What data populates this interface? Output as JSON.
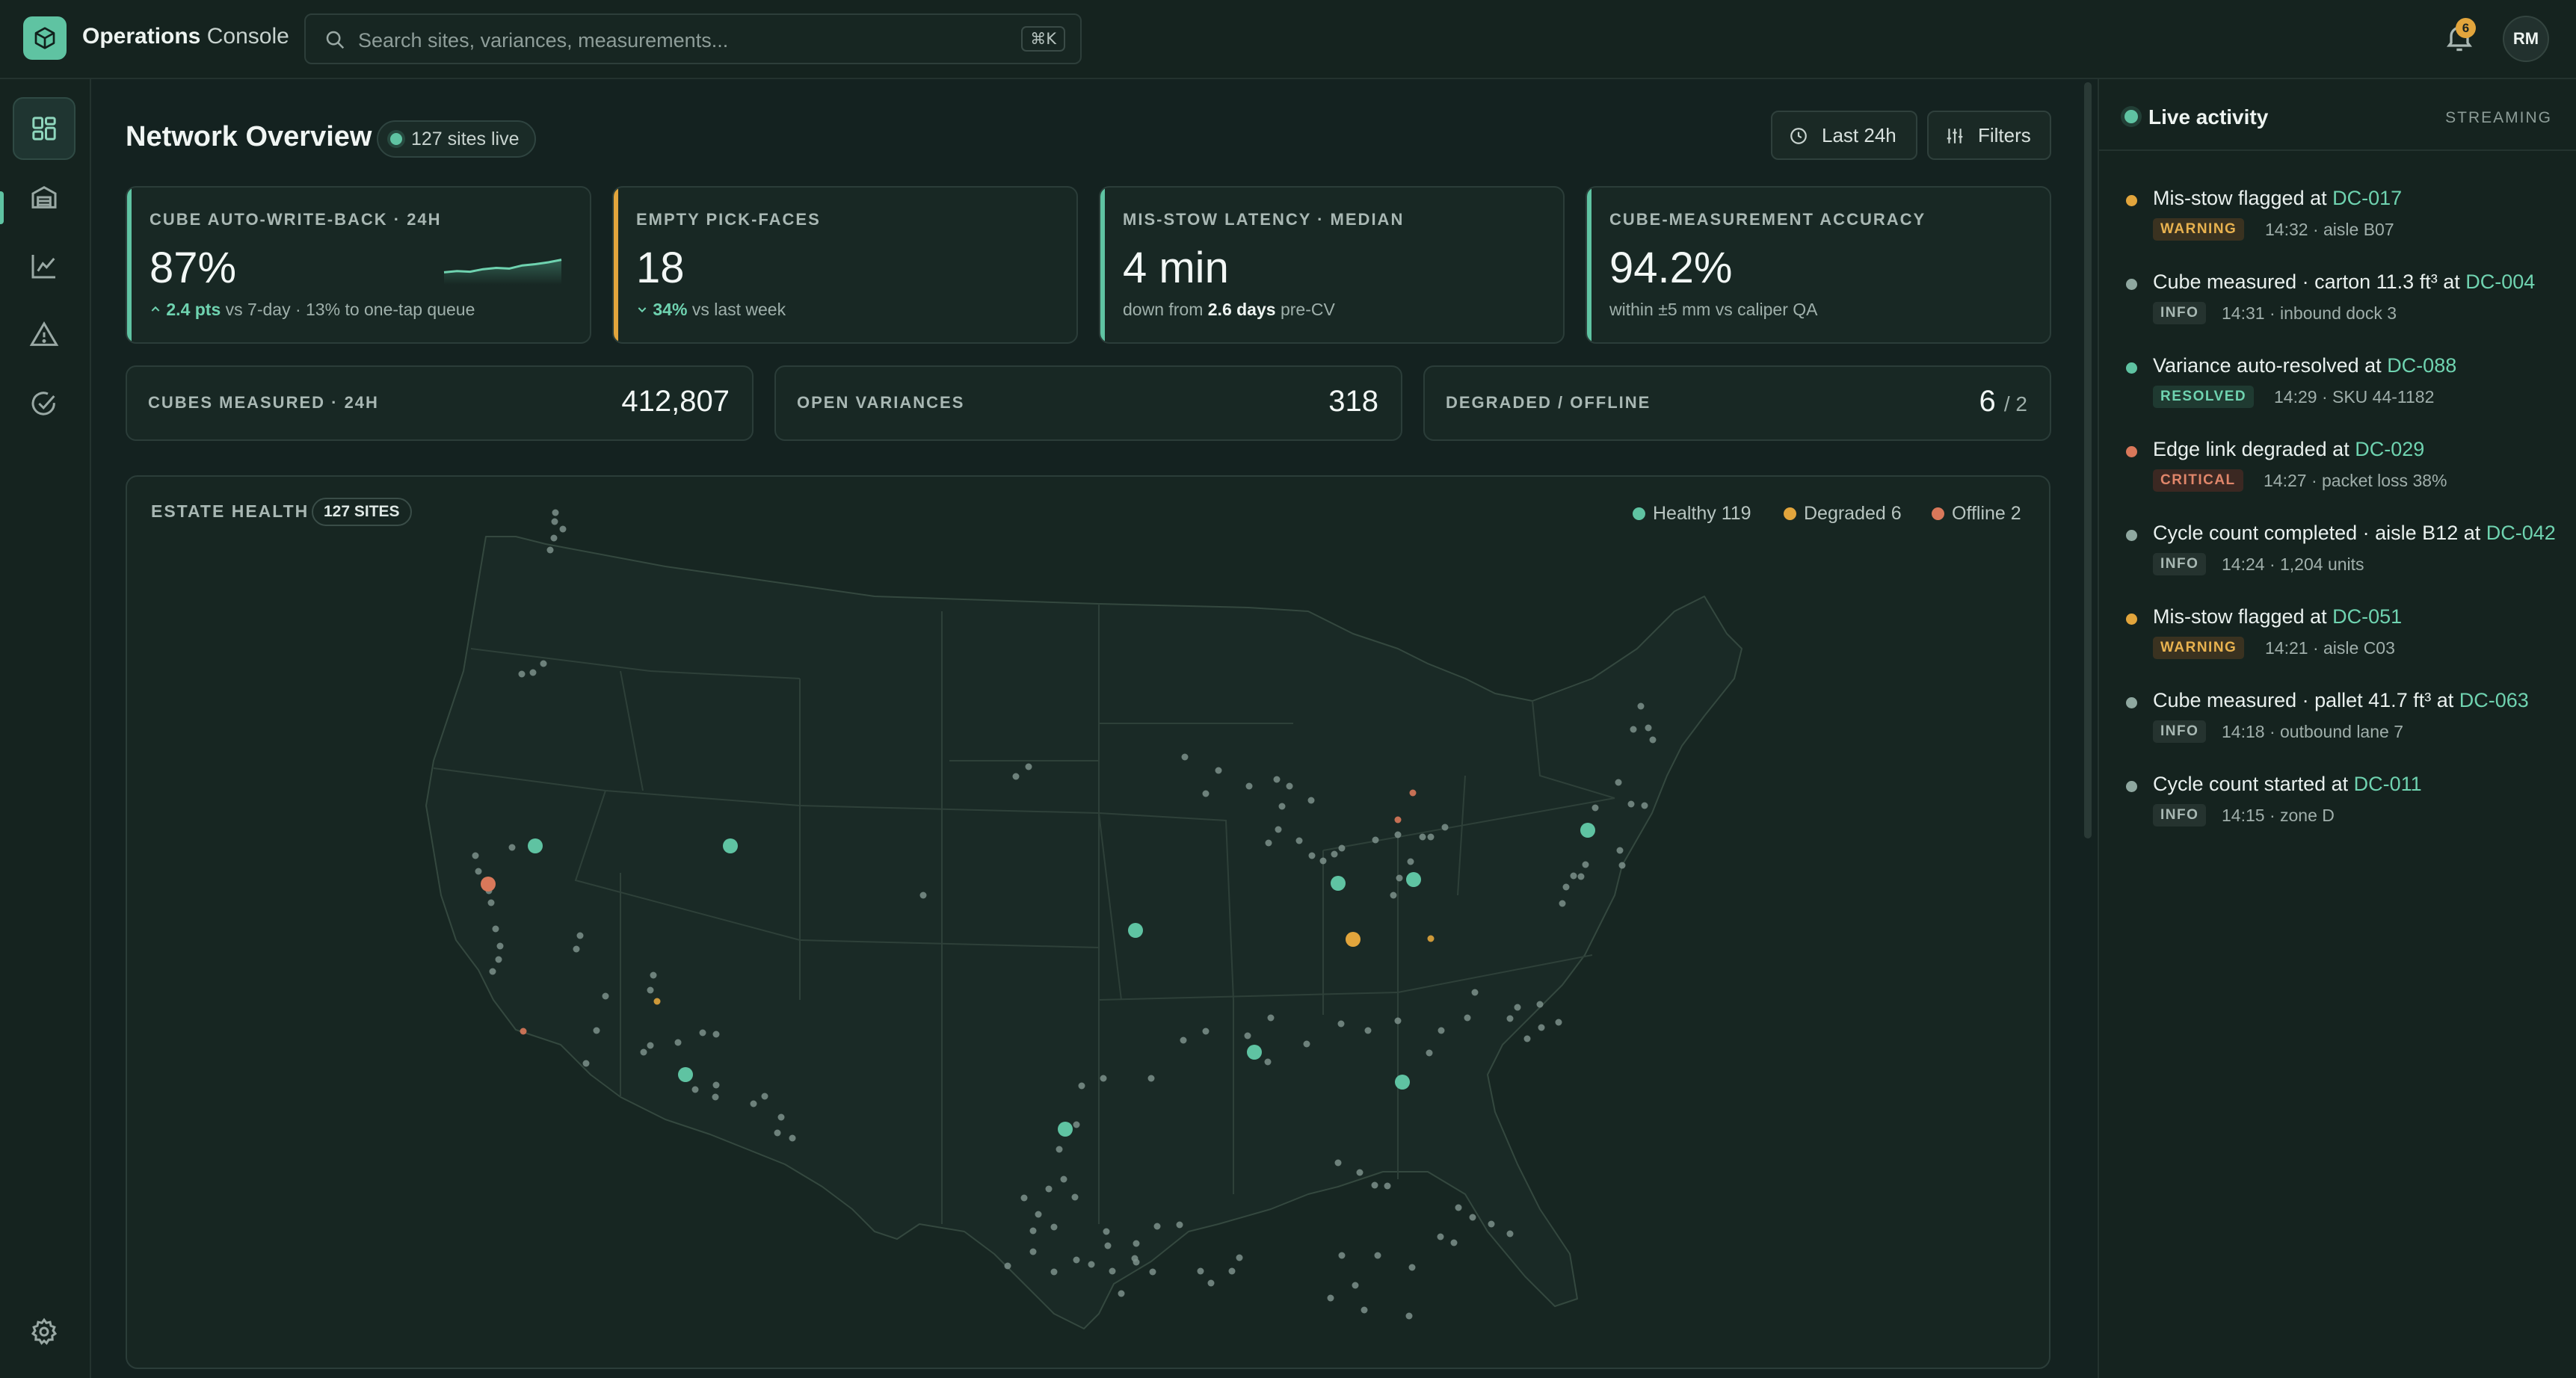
{
  "app": {
    "name": "Operations",
    "name_suffix": "Console"
  },
  "search": {
    "placeholder": "Search sites, variances, measurements...",
    "shortcut": "⌘K"
  },
  "notifications": {
    "count": "6"
  },
  "user": {
    "initials": "RM"
  },
  "nav": [
    "dashboard-icon",
    "warehouse-icon",
    "analytics-icon",
    "alerts-icon",
    "tasks-icon",
    "settings-icon"
  ],
  "page": {
    "title": "Network Overview",
    "live_pill": "127 sites live",
    "range_button": "Last 24h",
    "filters_button": "Filters"
  },
  "kpis": [
    {
      "label": "Cube auto-write-back · 24h",
      "value": "87%",
      "delta": "2.4 pts",
      "sub": "vs 7-day · 13% to one-tap queue",
      "accent": "#5fc3a2",
      "trend": [
        0.3,
        0.34,
        0.32,
        0.4,
        0.44,
        0.42,
        0.52,
        0.56,
        0.62,
        0.7
      ]
    },
    {
      "label": "Empty pick-faces",
      "value": "18",
      "delta": "34%",
      "sub": "vs last week",
      "accent": "#e2a53c"
    },
    {
      "label": "Mis-stow latency · median",
      "value": "4 min",
      "sub_pre": "down from",
      "sub_bold": "2.6 days",
      "sub_post": "pre-CV",
      "accent": "#5fc3a2"
    },
    {
      "label": "Cube-measurement accuracy",
      "value": "94.2%",
      "sub": "within ±5 mm vs caliper QA",
      "accent": "#5fc3a2"
    }
  ],
  "stats": [
    {
      "label": "Cubes measured · 24h",
      "value": "412,807"
    },
    {
      "label": "Open variances",
      "value": "318"
    },
    {
      "label": "Degraded / offline",
      "value": "6",
      "value_of": "/ 2"
    }
  ],
  "map": {
    "title": "ESTATE HEALTH",
    "badge": "127 SITES",
    "legend": [
      {
        "label": "Healthy 119",
        "color": "#5fc3a2"
      },
      {
        "label": "Degraded 6",
        "color": "#e2a53c"
      },
      {
        "label": "Offline 2",
        "color": "#d9785a"
      }
    ]
  },
  "activity": {
    "title": "Live activity",
    "status": "STREAMING",
    "events": [
      {
        "text": "Mis-stow flagged at ",
        "site": "DC-017",
        "tag": "WARNING",
        "meta": "14:32 · aisle B07",
        "color": "#e2a53c"
      },
      {
        "text": "Cube measured · carton 11.3 ft³ at ",
        "site": "DC-004",
        "tag": "INFO",
        "meta": "14:31 · inbound dock 3",
        "color": "#8fa8a0"
      },
      {
        "text": "Variance auto-resolved at ",
        "site": "DC-088",
        "tag": "RESOLVED",
        "meta": "14:29 · SKU 44-1182",
        "color": "#5fc3a2"
      },
      {
        "text": "Edge link degraded at ",
        "site": "DC-029",
        "tag": "CRITICAL",
        "meta": "14:27 · packet loss 38%",
        "color": "#d9785a"
      },
      {
        "text": "Cycle count completed · aisle B12 at ",
        "site": "DC-042",
        "tag": "INFO",
        "meta": "14:24 · 1,204 units",
        "color": "#8fa8a0"
      },
      {
        "text": "Mis-stow flagged at ",
        "site": "DC-051",
        "tag": "WARNING",
        "meta": "14:21 · aisle C03",
        "color": "#e2a53c"
      },
      {
        "text": "Cube measured · pallet 41.7 ft³ at ",
        "site": "DC-063",
        "tag": "INFO",
        "meta": "14:18 · outbound lane 7",
        "color": "#8fa8a0"
      },
      {
        "text": "Cycle count started at ",
        "site": "DC-011",
        "tag": "INFO",
        "meta": "14:15 · zone D",
        "color": "#8fa8a0"
      }
    ]
  }
}
